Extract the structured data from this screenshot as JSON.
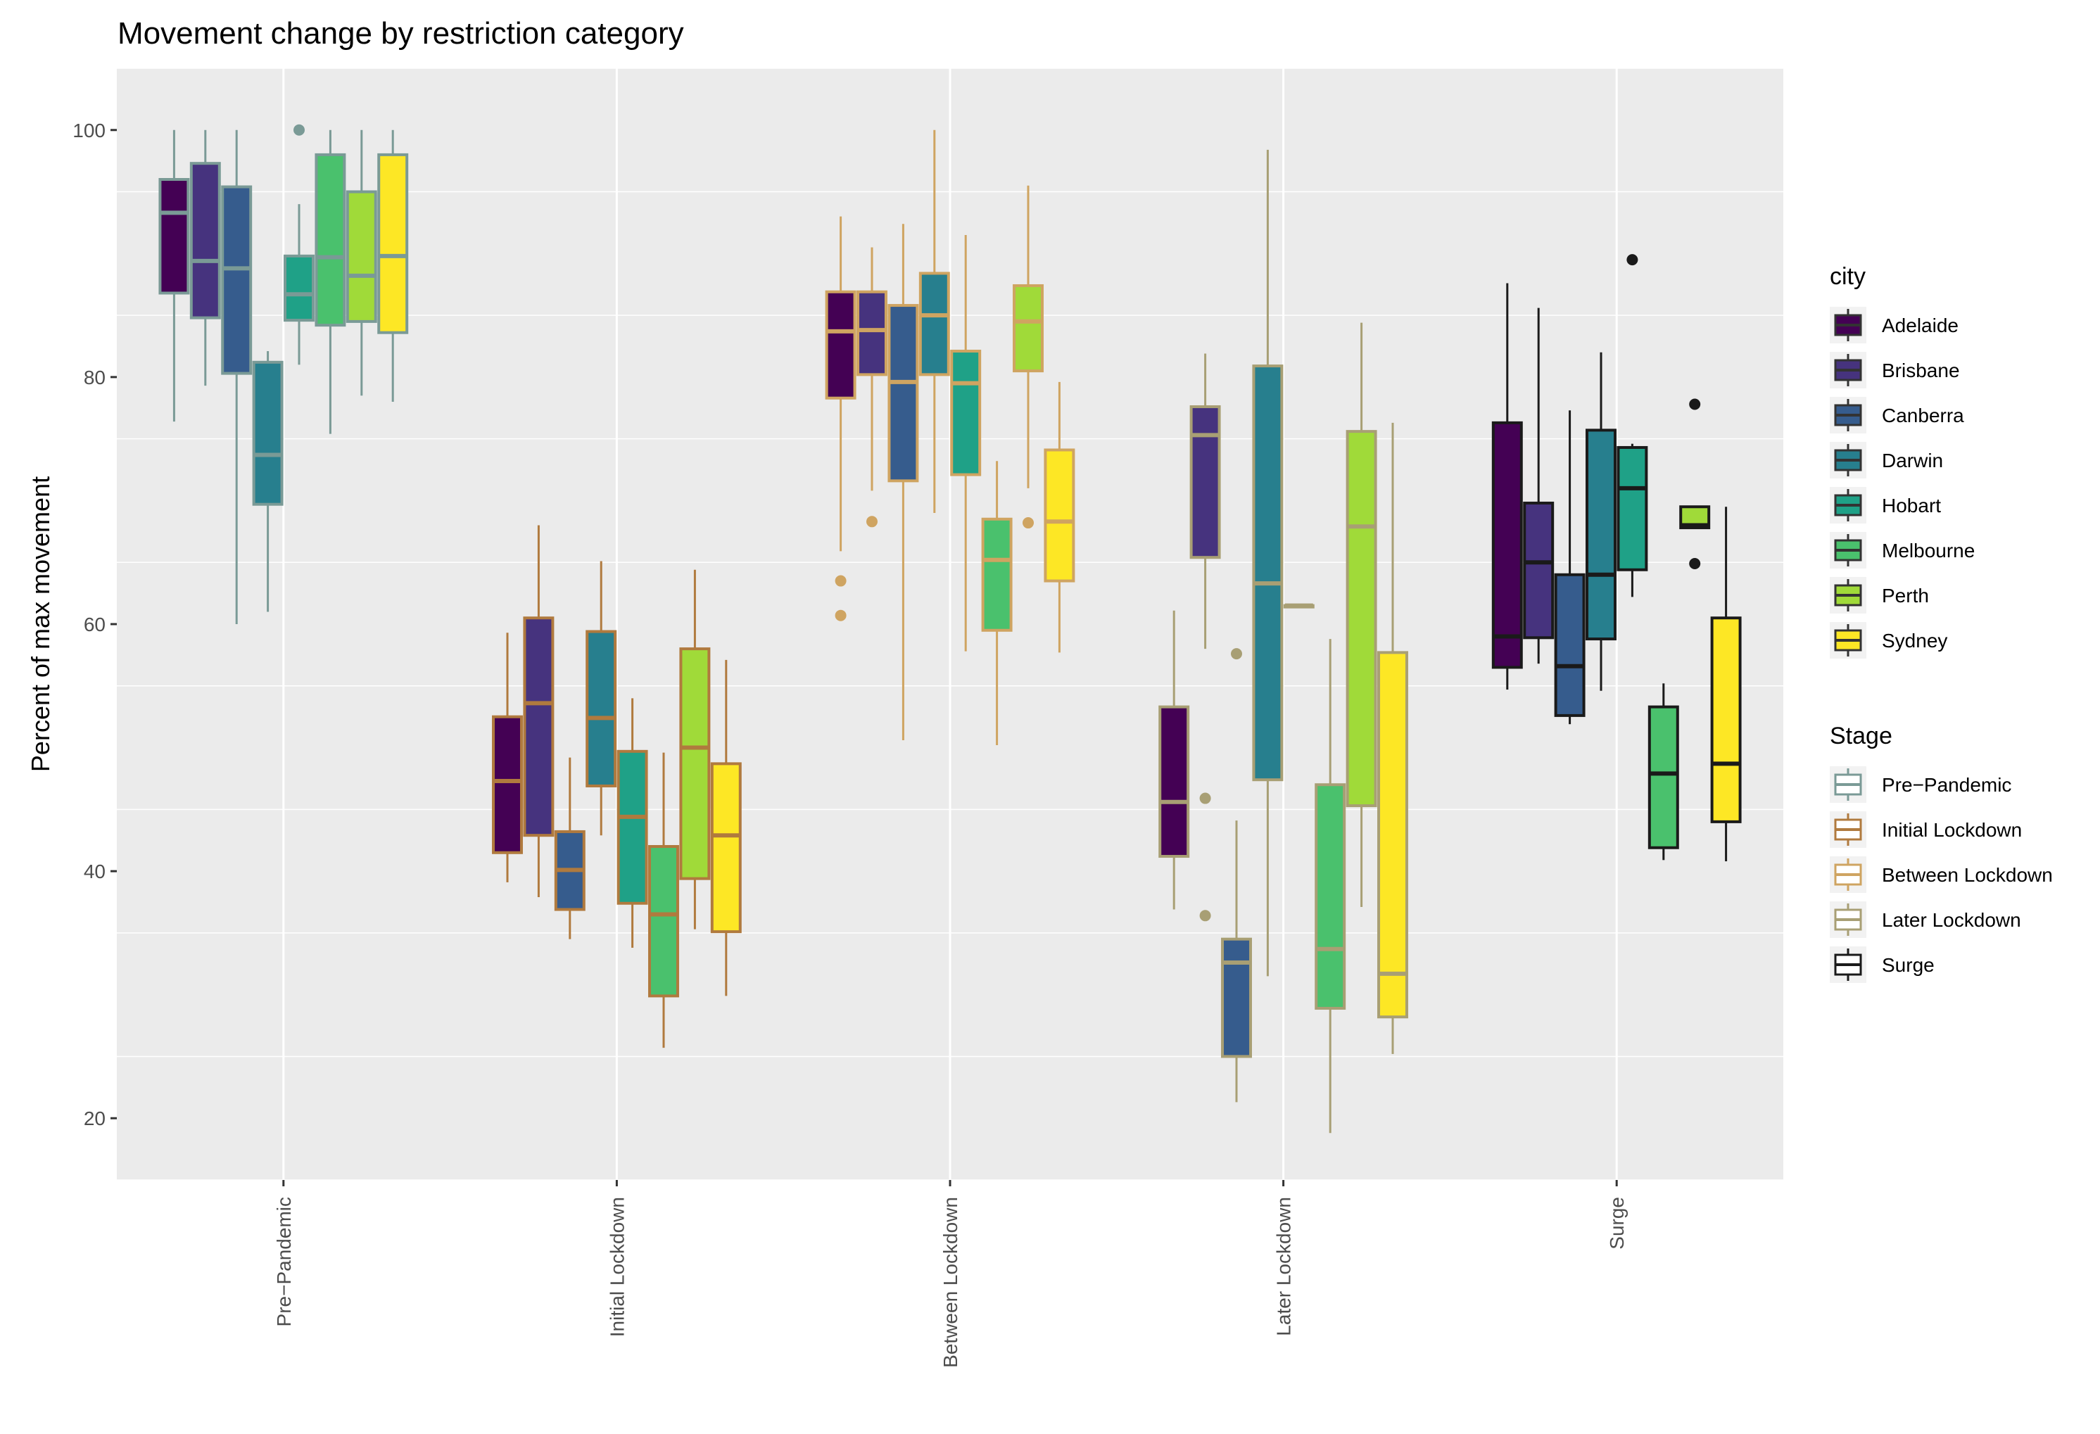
{
  "chart_data": {
    "type": "boxplot",
    "title": "Movement change by restriction category",
    "xlabel": "",
    "ylabel": "Percent of max movement",
    "ylim": [
      15,
      105
    ],
    "yticks": [
      20,
      40,
      60,
      80,
      100
    ],
    "grid": true,
    "legend_position": "right",
    "categories": [
      "Pre−Pandemic",
      "Initial Lockdown",
      "Between Lockdown",
      "Later Lockdown",
      "Surge"
    ],
    "fill_legend": {
      "title": "city",
      "items": [
        {
          "label": "Adelaide",
          "color": "#440154"
        },
        {
          "label": "Brisbane",
          "color": "#46337E"
        },
        {
          "label": "Canberra",
          "color": "#365C8D"
        },
        {
          "label": "Darwin",
          "color": "#277F8E"
        },
        {
          "label": "Hobart",
          "color": "#1FA187"
        },
        {
          "label": "Melbourne",
          "color": "#4AC16D"
        },
        {
          "label": "Perth",
          "color": "#A0DA39"
        },
        {
          "label": "Sydney",
          "color": "#FDE725"
        }
      ]
    },
    "color_legend": {
      "title": "Stage",
      "items": [
        {
          "label": "Pre−Pandemic",
          "color": "#7A9A96"
        },
        {
          "label": "Initial Lockdown",
          "color": "#B07A3E"
        },
        {
          "label": "Between Lockdown",
          "color": "#CFA461"
        },
        {
          "label": "Later Lockdown",
          "color": "#A89F74"
        },
        {
          "label": "Surge",
          "color": "#1A1A1A"
        }
      ]
    },
    "groups": [
      {
        "stage": "Pre−Pandemic",
        "boxes": [
          {
            "city": "Adelaide",
            "min": 76.4,
            "q1": 86.8,
            "median": 93.3,
            "q3": 96.0,
            "max": 100.0,
            "outliers": []
          },
          {
            "city": "Brisbane",
            "min": 79.3,
            "q1": 84.8,
            "median": 89.4,
            "q3": 97.3,
            "max": 100.0,
            "outliers": []
          },
          {
            "city": "Canberra",
            "min": 60.0,
            "q1": 80.3,
            "median": 88.8,
            "q3": 95.4,
            "max": 100.0,
            "outliers": []
          },
          {
            "city": "Darwin",
            "min": 61.0,
            "q1": 69.7,
            "median": 73.7,
            "q3": 81.2,
            "max": 82.1,
            "outliers": []
          },
          {
            "city": "Hobart",
            "min": 81.0,
            "q1": 84.6,
            "median": 86.7,
            "q3": 89.8,
            "max": 94.0,
            "outliers": [
              100.0
            ]
          },
          {
            "city": "Melbourne",
            "min": 75.4,
            "q1": 84.2,
            "median": 89.7,
            "q3": 98.0,
            "max": 100.0,
            "outliers": []
          },
          {
            "city": "Perth",
            "min": 78.5,
            "q1": 84.5,
            "median": 88.2,
            "q3": 95.0,
            "max": 100.0,
            "outliers": []
          },
          {
            "city": "Sydney",
            "min": 78.0,
            "q1": 83.6,
            "median": 89.8,
            "q3": 98.0,
            "max": 100.0,
            "outliers": []
          }
        ]
      },
      {
        "stage": "Initial Lockdown",
        "boxes": [
          {
            "city": "Adelaide",
            "min": 39.1,
            "q1": 41.5,
            "median": 47.3,
            "q3": 52.5,
            "max": 59.3,
            "outliers": []
          },
          {
            "city": "Brisbane",
            "min": 37.9,
            "q1": 42.9,
            "median": 53.6,
            "q3": 60.5,
            "max": 68.0,
            "outliers": []
          },
          {
            "city": "Canberra",
            "min": 34.5,
            "q1": 36.9,
            "median": 40.1,
            "q3": 43.2,
            "max": 49.2,
            "outliers": []
          },
          {
            "city": "Darwin",
            "min": 42.9,
            "q1": 46.9,
            "median": 52.4,
            "q3": 59.4,
            "max": 65.1,
            "outliers": []
          },
          {
            "city": "Hobart",
            "min": 33.8,
            "q1": 37.4,
            "median": 44.4,
            "q3": 49.7,
            "max": 54.0,
            "outliers": []
          },
          {
            "city": "Melbourne",
            "min": 25.7,
            "q1": 29.9,
            "median": 36.5,
            "q3": 42.0,
            "max": 49.6,
            "outliers": []
          },
          {
            "city": "Perth",
            "min": 35.3,
            "q1": 39.4,
            "median": 50.0,
            "q3": 58.0,
            "max": 64.4,
            "outliers": []
          },
          {
            "city": "Sydney",
            "min": 29.9,
            "q1": 35.1,
            "median": 42.9,
            "q3": 48.7,
            "max": 57.1,
            "outliers": []
          }
        ]
      },
      {
        "stage": "Between Lockdown",
        "boxes": [
          {
            "city": "Adelaide",
            "min": 65.9,
            "q1": 78.3,
            "median": 83.7,
            "q3": 86.9,
            "max": 93.0,
            "outliers": [
              63.5,
              60.7
            ]
          },
          {
            "city": "Brisbane",
            "min": 70.8,
            "q1": 80.2,
            "median": 83.8,
            "q3": 86.9,
            "max": 90.5,
            "outliers": [
              68.3
            ]
          },
          {
            "city": "Canberra",
            "min": 50.6,
            "q1": 71.6,
            "median": 79.6,
            "q3": 85.8,
            "max": 92.4,
            "outliers": []
          },
          {
            "city": "Darwin",
            "min": 69.0,
            "q1": 80.2,
            "median": 85.0,
            "q3": 88.4,
            "max": 100.0,
            "outliers": []
          },
          {
            "city": "Hobart",
            "min": 57.8,
            "q1": 72.1,
            "median": 79.5,
            "q3": 82.1,
            "max": 91.5,
            "outliers": []
          },
          {
            "city": "Melbourne",
            "min": 50.2,
            "q1": 59.5,
            "median": 65.2,
            "q3": 68.5,
            "max": 73.2,
            "outliers": []
          },
          {
            "city": "Perth",
            "min": 71.0,
            "q1": 80.5,
            "median": 84.5,
            "q3": 87.4,
            "max": 95.5,
            "outliers": [
              68.2
            ]
          },
          {
            "city": "Sydney",
            "min": 57.7,
            "q1": 63.5,
            "median": 68.3,
            "q3": 74.1,
            "max": 79.6,
            "outliers": []
          }
        ]
      },
      {
        "stage": "Later Lockdown",
        "boxes": [
          {
            "city": "Adelaide",
            "min": 36.9,
            "q1": 41.2,
            "median": 45.6,
            "q3": 53.3,
            "max": 61.1,
            "outliers": []
          },
          {
            "city": "Brisbane",
            "min": 58.0,
            "q1": 65.4,
            "median": 75.3,
            "q3": 77.6,
            "max": 81.9,
            "outliers": [
              45.9,
              36.4
            ]
          },
          {
            "city": "Canberra",
            "min": 21.3,
            "q1": 25.0,
            "median": 32.6,
            "q3": 34.5,
            "max": 44.1,
            "outliers": [
              57.6
            ]
          },
          {
            "city": "Darwin",
            "min": 31.5,
            "q1": 47.4,
            "median": 63.3,
            "q3": 80.9,
            "max": 98.4,
            "outliers": []
          },
          {
            "city": "Hobart",
            "min": 61.5,
            "q1": 61.5,
            "median": 61.5,
            "q3": 61.5,
            "max": 61.5,
            "outliers": []
          },
          {
            "city": "Melbourne",
            "min": 18.8,
            "q1": 28.9,
            "median": 33.7,
            "q3": 47.0,
            "max": 58.8,
            "outliers": []
          },
          {
            "city": "Perth",
            "min": 37.1,
            "q1": 45.3,
            "median": 67.9,
            "q3": 75.6,
            "max": 84.4,
            "outliers": []
          },
          {
            "city": "Sydney",
            "min": 25.2,
            "q1": 28.2,
            "median": 31.7,
            "q3": 57.7,
            "max": 76.3,
            "outliers": []
          }
        ]
      },
      {
        "stage": "Surge",
        "boxes": [
          {
            "city": "Adelaide",
            "min": 54.7,
            "q1": 56.5,
            "median": 59.0,
            "q3": 76.3,
            "max": 87.6,
            "outliers": []
          },
          {
            "city": "Brisbane",
            "min": 56.8,
            "q1": 58.9,
            "median": 65.0,
            "q3": 69.8,
            "max": 85.6,
            "outliers": []
          },
          {
            "city": "Canberra",
            "min": 51.9,
            "q1": 52.6,
            "median": 56.6,
            "q3": 64.0,
            "max": 77.3,
            "outliers": []
          },
          {
            "city": "Darwin",
            "min": 54.6,
            "q1": 58.8,
            "median": 64.0,
            "q3": 75.7,
            "max": 82.0,
            "outliers": []
          },
          {
            "city": "Hobart",
            "min": 62.2,
            "q1": 64.4,
            "median": 71.0,
            "q3": 74.3,
            "max": 74.6,
            "outliers": [
              89.5
            ]
          },
          {
            "city": "Melbourne",
            "min": 40.9,
            "q1": 41.9,
            "median": 47.9,
            "q3": 53.3,
            "max": 55.2,
            "outliers": []
          },
          {
            "city": "Perth",
            "min": 67.8,
            "q1": 67.8,
            "median": 68.0,
            "q3": 69.5,
            "max": 69.5,
            "outliers": [
              77.8,
              64.9
            ]
          },
          {
            "city": "Sydney",
            "min": 40.8,
            "q1": 44.0,
            "median": 48.7,
            "q3": 60.5,
            "max": 69.5,
            "outliers": []
          }
        ]
      }
    ]
  }
}
